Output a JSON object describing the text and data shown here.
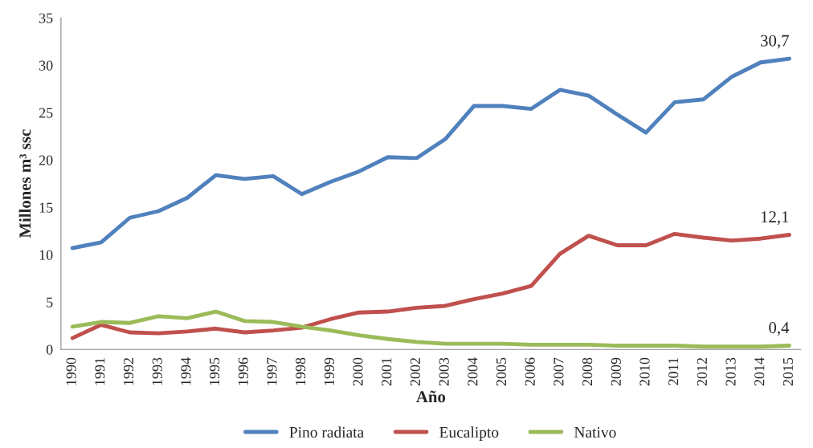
{
  "chart_data": {
    "type": "line",
    "xlabel": "Año",
    "ylabel": "Millones m³ ssc",
    "categories": [
      "1990",
      "1991",
      "1992",
      "1993",
      "1994",
      "1995",
      "1996",
      "1997",
      "1998",
      "1999",
      "2000",
      "2001",
      "2002",
      "2003",
      "2004",
      "2005",
      "2006",
      "2007",
      "2008",
      "2009",
      "2010",
      "2011",
      "2012",
      "2013",
      "2014",
      "2015"
    ],
    "series": [
      {
        "name": "Pino radiata",
        "color": "#4f81bd",
        "values": [
          10.7,
          11.3,
          13.9,
          14.6,
          16.0,
          18.4,
          18.0,
          18.3,
          16.4,
          17.7,
          18.8,
          20.3,
          20.2,
          22.2,
          25.7,
          25.7,
          25.4,
          27.4,
          26.8,
          24.8,
          22.9,
          26.1,
          26.4,
          28.8,
          30.3,
          30.7
        ],
        "value_labels": [
          null,
          null,
          null,
          null,
          null,
          null,
          null,
          null,
          null,
          null,
          null,
          null,
          null,
          null,
          null,
          null,
          null,
          null,
          null,
          null,
          null,
          null,
          null,
          null,
          null,
          "30,7"
        ]
      },
      {
        "name": "Eucalipto",
        "color": "#c0504d",
        "values": [
          1.2,
          2.6,
          1.8,
          1.7,
          1.9,
          2.2,
          1.8,
          2.0,
          2.3,
          3.2,
          3.9,
          4.0,
          4.4,
          4.6,
          5.3,
          5.9,
          6.7,
          10.1,
          12.0,
          11.0,
          11.0,
          12.2,
          11.8,
          11.5,
          11.7,
          12.1
        ],
        "value_labels": [
          null,
          null,
          null,
          null,
          null,
          null,
          null,
          null,
          null,
          null,
          null,
          null,
          null,
          null,
          null,
          null,
          null,
          null,
          null,
          null,
          null,
          null,
          null,
          null,
          null,
          "12,1"
        ]
      },
      {
        "name": "Nativo",
        "color": "#9bbb59",
        "values": [
          2.4,
          2.9,
          2.8,
          3.5,
          3.3,
          4.0,
          3.0,
          2.9,
          2.4,
          2.0,
          1.5,
          1.1,
          0.8,
          0.6,
          0.6,
          0.6,
          0.5,
          0.5,
          0.5,
          0.4,
          0.4,
          0.4,
          0.3,
          0.3,
          0.3,
          0.4
        ],
        "value_labels": [
          null,
          null,
          null,
          null,
          null,
          null,
          null,
          null,
          null,
          null,
          null,
          null,
          null,
          null,
          null,
          null,
          null,
          null,
          null,
          null,
          null,
          null,
          null,
          null,
          null,
          "0,4"
        ]
      }
    ],
    "ylim": [
      0,
      35
    ],
    "yticks": [
      0,
      5,
      10,
      15,
      20,
      25,
      30,
      35
    ],
    "grid": false,
    "legend": "bottom",
    "marker": "none",
    "line_style": "solid"
  }
}
